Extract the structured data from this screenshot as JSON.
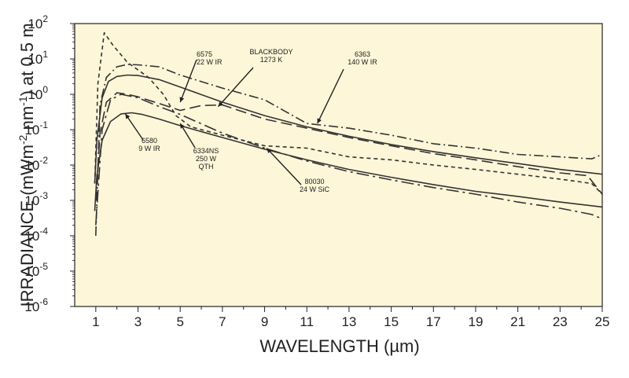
{
  "chart_data": {
    "type": "line",
    "title": "",
    "xlabel": "WAVELENGTH (µm)",
    "ylabel_parts": [
      "IRRADIANCE (mWm",
      "-2",
      " nm",
      "-1",
      ") at 0.5 m"
    ],
    "xlim": [
      0,
      25
    ],
    "ylim_log10": [
      -6,
      2
    ],
    "xticks": [
      "1",
      "3",
      "5",
      "7",
      "9",
      "11",
      "13",
      "15",
      "17",
      "19",
      "21",
      "23",
      "25"
    ],
    "yticks": [
      {
        "base": "10",
        "exp": "2"
      },
      {
        "base": "10",
        "exp": "1"
      },
      {
        "base": "10",
        "exp": "0"
      },
      {
        "base": "10",
        "exp": "-1"
      },
      {
        "base": "10",
        "exp": "-2"
      },
      {
        "base": "10",
        "exp": "-3"
      },
      {
        "base": "10",
        "exp": "-4"
      },
      {
        "base": "10",
        "exp": "-5"
      },
      {
        "base": "10",
        "exp": "-6"
      }
    ],
    "background": "#fdf6d8",
    "line_color": "#333333",
    "series": [
      {
        "name": "6575 22 W IR",
        "dash": "solid",
        "x": [
          0.95,
          1.05,
          1.3,
          1.6,
          2.0,
          2.5,
          3.0,
          4,
          5,
          7,
          9,
          11,
          13,
          15,
          17,
          19,
          21,
          23,
          25
        ],
        "y": [
          0.003,
          0.05,
          0.8,
          2.3,
          3.2,
          3.5,
          3.4,
          2.6,
          1.6,
          0.6,
          0.25,
          0.12,
          0.065,
          0.038,
          0.024,
          0.016,
          0.011,
          0.0075,
          0.0055
        ]
      },
      {
        "name": "6580 9 W IR",
        "dash": "solid",
        "x": [
          0.95,
          1.05,
          1.3,
          1.7,
          2.2,
          2.7,
          3.2,
          4,
          5,
          7,
          9,
          11,
          13,
          15,
          17,
          19,
          21,
          23,
          25
        ],
        "y": [
          0.0005,
          0.005,
          0.05,
          0.17,
          0.28,
          0.3,
          0.27,
          0.2,
          0.13,
          0.06,
          0.028,
          0.014,
          0.0075,
          0.0045,
          0.0028,
          0.0018,
          0.0013,
          0.0009,
          0.00065
        ]
      },
      {
        "name": "BLACKBODY 1273 K",
        "dash": "longdash",
        "x": [
          1.0,
          1.2,
          1.5,
          2.0,
          2.5,
          3.0,
          4,
          5,
          6,
          7,
          9,
          11,
          13,
          15,
          17,
          19,
          21,
          23,
          24.3,
          25
        ],
        "y": [
          0.001,
          0.08,
          0.6,
          1.1,
          1.0,
          0.85,
          0.55,
          0.35,
          0.48,
          0.5,
          0.2,
          0.11,
          0.06,
          0.035,
          0.021,
          0.014,
          0.009,
          0.006,
          0.005,
          0.0015
        ]
      },
      {
        "name": "6363 140 W IR",
        "dash": "dashdot",
        "x": [
          1.0,
          1.2,
          1.5,
          2.0,
          2.5,
          3.0,
          4,
          5,
          7,
          9,
          11,
          13,
          15,
          17,
          19,
          21,
          23,
          24.5,
          25
        ],
        "y": [
          0.0001,
          0.5,
          3.0,
          6.0,
          7.0,
          6.8,
          6.0,
          3.5,
          1.5,
          0.7,
          0.15,
          0.11,
          0.07,
          0.04,
          0.03,
          0.02,
          0.017,
          0.015,
          0.02
        ]
      },
      {
        "name": "6334NS 250 W QTH",
        "dash": "dash",
        "x": [
          0.95,
          1.1,
          1.4,
          1.8,
          2.5,
          3.5,
          4.2,
          4.8,
          5.5,
          7,
          9,
          11,
          13,
          15,
          17,
          19,
          21,
          23,
          24.5,
          25
        ],
        "y": [
          0.003,
          2,
          55,
          25,
          8,
          3,
          1,
          0.25,
          0.12,
          0.07,
          0.035,
          0.03,
          0.017,
          0.014,
          0.01,
          0.0075,
          0.0055,
          0.004,
          0.003,
          0.0015
        ]
      },
      {
        "name": "80030 24 W SiC",
        "dash": "longdashdot",
        "x": [
          1.0,
          1.3,
          1.7,
          2.2,
          3,
          4,
          5,
          7,
          9,
          11,
          13,
          15,
          17,
          19,
          21,
          23,
          24.5,
          25
        ],
        "y": [
          0.0002,
          0.1,
          0.7,
          1.0,
          0.8,
          0.45,
          0.27,
          0.08,
          0.03,
          0.013,
          0.0065,
          0.0038,
          0.0023,
          0.0015,
          0.0009,
          0.0006,
          0.0004,
          0.0003
        ]
      }
    ],
    "annotations": [
      {
        "id": "6575",
        "lines": [
          "6575",
          "22 W IR"
        ],
        "tip": [
          5.0,
          0.6
        ]
      },
      {
        "id": "blackbody",
        "lines": [
          "BLACKBODY",
          "1273 K"
        ],
        "tip": [
          6.8,
          0.45
        ]
      },
      {
        "id": "6363",
        "lines": [
          "6363",
          "140 W IR"
        ],
        "tip": [
          11.5,
          0.15
        ]
      },
      {
        "id": "6580",
        "lines": [
          "6580",
          "9 W IR"
        ],
        "tip": [
          2.4,
          0.28
        ]
      },
      {
        "id": "6334ns",
        "lines": [
          "6334NS",
          "250 W",
          "QTH"
        ],
        "tip": [
          5.0,
          0.15
        ]
      },
      {
        "id": "80030",
        "lines": [
          "80030",
          "24 W SiC"
        ],
        "tip": [
          9.1,
          0.03
        ]
      }
    ]
  }
}
